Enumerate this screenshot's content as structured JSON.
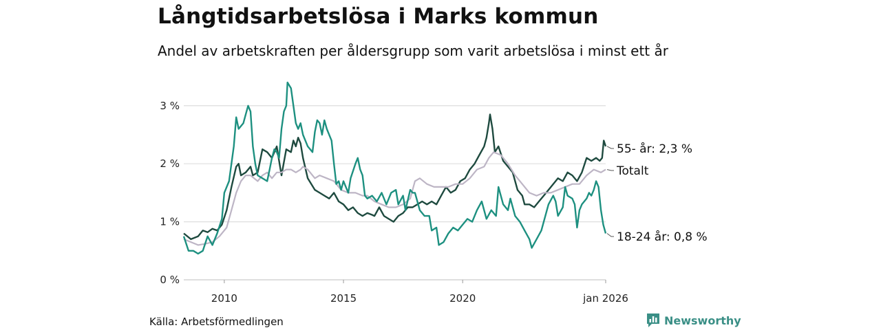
{
  "title": "Långtidsarbetslösa i Marks kommun",
  "subtitle": "Andel av arbetskraften per åldersgrupp som varit arbetslösa i minst ett år",
  "source": "Källa: Arbetsförmedlingen",
  "brand": "Newsworthy",
  "colors": {
    "older": "#1e4a3f",
    "young": "#1d9080",
    "total": "#bdb5c5",
    "grid": "#dddddd",
    "brand": "#3a8f86"
  },
  "chart_data": {
    "type": "line",
    "title": "Långtidsarbetslösa i Marks kommun",
    "xlabel": "",
    "ylabel": "",
    "xlim": [
      2008.3,
      2026.0
    ],
    "ylim": [
      0,
      3.4
    ],
    "y_ticks": [
      0,
      1,
      2,
      3
    ],
    "y_tick_labels": [
      "0 %",
      "1 %",
      "2 %",
      "3 %"
    ],
    "x_ticks": [
      2010,
      2015,
      2020,
      2026.0
    ],
    "x_tick_labels": [
      "2010",
      "2015",
      "2020",
      "jan 2026"
    ],
    "series": [
      {
        "name": "55- år",
        "end_label": "55- år: 2,3 %",
        "color": "#1e4a3f",
        "points": [
          [
            2008.3,
            0.8
          ],
          [
            2008.6,
            0.7
          ],
          [
            2008.9,
            0.75
          ],
          [
            2009.1,
            0.85
          ],
          [
            2009.3,
            0.82
          ],
          [
            2009.5,
            0.88
          ],
          [
            2009.7,
            0.85
          ],
          [
            2009.9,
            0.95
          ],
          [
            2010.1,
            1.2
          ],
          [
            2010.3,
            1.6
          ],
          [
            2010.5,
            1.95
          ],
          [
            2010.6,
            2.0
          ],
          [
            2010.7,
            1.8
          ],
          [
            2010.9,
            1.85
          ],
          [
            2011.1,
            1.95
          ],
          [
            2011.2,
            1.8
          ],
          [
            2011.4,
            1.85
          ],
          [
            2011.6,
            2.25
          ],
          [
            2011.8,
            2.2
          ],
          [
            2012.0,
            2.1
          ],
          [
            2012.2,
            2.3
          ],
          [
            2012.3,
            2.05
          ],
          [
            2012.4,
            1.8
          ],
          [
            2012.6,
            2.25
          ],
          [
            2012.8,
            2.2
          ],
          [
            2012.9,
            2.4
          ],
          [
            2013.0,
            2.3
          ],
          [
            2013.1,
            2.45
          ],
          [
            2013.2,
            2.35
          ],
          [
            2013.3,
            2.1
          ],
          [
            2013.5,
            1.75
          ],
          [
            2013.8,
            1.55
          ],
          [
            2014.0,
            1.5
          ],
          [
            2014.2,
            1.45
          ],
          [
            2014.4,
            1.4
          ],
          [
            2014.6,
            1.5
          ],
          [
            2014.8,
            1.35
          ],
          [
            2015.0,
            1.3
          ],
          [
            2015.2,
            1.2
          ],
          [
            2015.4,
            1.25
          ],
          [
            2015.6,
            1.15
          ],
          [
            2015.8,
            1.1
          ],
          [
            2016.0,
            1.15
          ],
          [
            2016.2,
            1.12
          ],
          [
            2016.3,
            1.1
          ],
          [
            2016.5,
            1.25
          ],
          [
            2016.7,
            1.1
          ],
          [
            2016.9,
            1.05
          ],
          [
            2017.1,
            1.0
          ],
          [
            2017.3,
            1.1
          ],
          [
            2017.5,
            1.15
          ],
          [
            2017.7,
            1.25
          ],
          [
            2017.9,
            1.25
          ],
          [
            2018.1,
            1.3
          ],
          [
            2018.3,
            1.35
          ],
          [
            2018.5,
            1.3
          ],
          [
            2018.7,
            1.35
          ],
          [
            2018.9,
            1.3
          ],
          [
            2019.1,
            1.45
          ],
          [
            2019.3,
            1.6
          ],
          [
            2019.5,
            1.5
          ],
          [
            2019.7,
            1.55
          ],
          [
            2019.9,
            1.7
          ],
          [
            2020.1,
            1.75
          ],
          [
            2020.3,
            1.9
          ],
          [
            2020.5,
            2.0
          ],
          [
            2020.7,
            2.15
          ],
          [
            2020.9,
            2.3
          ],
          [
            2021.0,
            2.45
          ],
          [
            2021.1,
            2.7
          ],
          [
            2021.15,
            2.85
          ],
          [
            2021.25,
            2.6
          ],
          [
            2021.35,
            2.2
          ],
          [
            2021.5,
            2.3
          ],
          [
            2021.7,
            2.05
          ],
          [
            2021.9,
            1.95
          ],
          [
            2022.1,
            1.85
          ],
          [
            2022.3,
            1.55
          ],
          [
            2022.5,
            1.45
          ],
          [
            2022.6,
            1.3
          ],
          [
            2022.8,
            1.3
          ],
          [
            2023.0,
            1.25
          ],
          [
            2023.2,
            1.35
          ],
          [
            2023.4,
            1.45
          ],
          [
            2023.6,
            1.55
          ],
          [
            2023.8,
            1.65
          ],
          [
            2024.0,
            1.75
          ],
          [
            2024.2,
            1.7
          ],
          [
            2024.4,
            1.85
          ],
          [
            2024.6,
            1.8
          ],
          [
            2024.8,
            1.7
          ],
          [
            2025.0,
            1.85
          ],
          [
            2025.2,
            2.1
          ],
          [
            2025.4,
            2.05
          ],
          [
            2025.6,
            2.1
          ],
          [
            2025.75,
            2.05
          ],
          [
            2025.85,
            2.1
          ],
          [
            2025.92,
            2.4
          ],
          [
            2026.0,
            2.3
          ]
        ]
      },
      {
        "name": "Totalt",
        "end_label": "Totalt",
        "color": "#bdb5c5",
        "points": [
          [
            2008.3,
            0.7
          ],
          [
            2008.6,
            0.65
          ],
          [
            2008.9,
            0.6
          ],
          [
            2009.2,
            0.62
          ],
          [
            2009.5,
            0.65
          ],
          [
            2009.8,
            0.75
          ],
          [
            2010.1,
            0.9
          ],
          [
            2010.3,
            1.2
          ],
          [
            2010.5,
            1.5
          ],
          [
            2010.7,
            1.7
          ],
          [
            2010.9,
            1.8
          ],
          [
            2011.1,
            1.8
          ],
          [
            2011.4,
            1.7
          ],
          [
            2011.6,
            1.8
          ],
          [
            2011.8,
            1.85
          ],
          [
            2012.0,
            1.75
          ],
          [
            2012.2,
            1.85
          ],
          [
            2012.4,
            1.85
          ],
          [
            2012.6,
            1.9
          ],
          [
            2012.8,
            1.9
          ],
          [
            2013.0,
            1.85
          ],
          [
            2013.2,
            1.9
          ],
          [
            2013.3,
            1.95
          ],
          [
            2013.5,
            1.9
          ],
          [
            2013.8,
            1.75
          ],
          [
            2014.0,
            1.8
          ],
          [
            2014.3,
            1.75
          ],
          [
            2014.6,
            1.7
          ],
          [
            2014.9,
            1.55
          ],
          [
            2015.2,
            1.5
          ],
          [
            2015.5,
            1.5
          ],
          [
            2015.8,
            1.45
          ],
          [
            2016.0,
            1.45
          ],
          [
            2016.3,
            1.35
          ],
          [
            2016.6,
            1.3
          ],
          [
            2016.9,
            1.25
          ],
          [
            2017.2,
            1.25
          ],
          [
            2017.5,
            1.3
          ],
          [
            2017.8,
            1.4
          ],
          [
            2018.0,
            1.7
          ],
          [
            2018.2,
            1.75
          ],
          [
            2018.5,
            1.65
          ],
          [
            2018.8,
            1.6
          ],
          [
            2019.1,
            1.6
          ],
          [
            2019.4,
            1.6
          ],
          [
            2019.7,
            1.65
          ],
          [
            2020.0,
            1.65
          ],
          [
            2020.3,
            1.75
          ],
          [
            2020.6,
            1.9
          ],
          [
            2020.9,
            1.95
          ],
          [
            2021.1,
            2.1
          ],
          [
            2021.3,
            2.2
          ],
          [
            2021.6,
            2.15
          ],
          [
            2021.9,
            2.0
          ],
          [
            2022.2,
            1.8
          ],
          [
            2022.5,
            1.65
          ],
          [
            2022.8,
            1.5
          ],
          [
            2023.1,
            1.45
          ],
          [
            2023.4,
            1.5
          ],
          [
            2023.7,
            1.5
          ],
          [
            2024.0,
            1.55
          ],
          [
            2024.3,
            1.6
          ],
          [
            2024.6,
            1.65
          ],
          [
            2024.9,
            1.65
          ],
          [
            2025.2,
            1.8
          ],
          [
            2025.5,
            1.9
          ],
          [
            2025.8,
            1.85
          ],
          [
            2026.0,
            1.9
          ]
        ]
      },
      {
        "name": "18-24 år",
        "end_label": "18-24 år: 0,8 %",
        "color": "#1d9080",
        "points": [
          [
            2008.3,
            0.75
          ],
          [
            2008.5,
            0.5
          ],
          [
            2008.7,
            0.5
          ],
          [
            2008.9,
            0.45
          ],
          [
            2009.1,
            0.5
          ],
          [
            2009.3,
            0.75
          ],
          [
            2009.5,
            0.6
          ],
          [
            2009.7,
            0.8
          ],
          [
            2009.9,
            1.05
          ],
          [
            2010.0,
            1.5
          ],
          [
            2010.2,
            1.7
          ],
          [
            2010.4,
            2.3
          ],
          [
            2010.5,
            2.8
          ],
          [
            2010.6,
            2.6
          ],
          [
            2010.8,
            2.7
          ],
          [
            2010.9,
            2.85
          ],
          [
            2011.0,
            3.0
          ],
          [
            2011.1,
            2.9
          ],
          [
            2011.2,
            2.3
          ],
          [
            2011.3,
            2.0
          ],
          [
            2011.4,
            1.8
          ],
          [
            2011.6,
            1.75
          ],
          [
            2011.8,
            1.7
          ],
          [
            2011.9,
            1.9
          ],
          [
            2012.0,
            2.1
          ],
          [
            2012.1,
            2.25
          ],
          [
            2012.2,
            2.2
          ],
          [
            2012.3,
            2.1
          ],
          [
            2012.4,
            2.6
          ],
          [
            2012.5,
            2.9
          ],
          [
            2012.6,
            3.0
          ],
          [
            2012.65,
            3.4
          ],
          [
            2012.8,
            3.3
          ],
          [
            2012.9,
            3.0
          ],
          [
            2013.0,
            2.7
          ],
          [
            2013.1,
            2.6
          ],
          [
            2013.2,
            2.7
          ],
          [
            2013.3,
            2.5
          ],
          [
            2013.5,
            2.3
          ],
          [
            2013.7,
            2.2
          ],
          [
            2013.8,
            2.55
          ],
          [
            2013.9,
            2.75
          ],
          [
            2014.0,
            2.7
          ],
          [
            2014.1,
            2.5
          ],
          [
            2014.2,
            2.75
          ],
          [
            2014.3,
            2.6
          ],
          [
            2014.5,
            2.4
          ],
          [
            2014.6,
            2.0
          ],
          [
            2014.7,
            1.65
          ],
          [
            2014.8,
            1.7
          ],
          [
            2014.9,
            1.55
          ],
          [
            2015.0,
            1.7
          ],
          [
            2015.2,
            1.5
          ],
          [
            2015.3,
            1.75
          ],
          [
            2015.5,
            2.0
          ],
          [
            2015.6,
            2.1
          ],
          [
            2015.7,
            1.9
          ],
          [
            2015.8,
            1.8
          ],
          [
            2015.9,
            1.45
          ],
          [
            2016.0,
            1.4
          ],
          [
            2016.2,
            1.45
          ],
          [
            2016.4,
            1.35
          ],
          [
            2016.6,
            1.5
          ],
          [
            2016.8,
            1.3
          ],
          [
            2017.0,
            1.5
          ],
          [
            2017.2,
            1.55
          ],
          [
            2017.3,
            1.3
          ],
          [
            2017.5,
            1.45
          ],
          [
            2017.6,
            1.2
          ],
          [
            2017.8,
            1.55
          ],
          [
            2017.9,
            1.5
          ],
          [
            2018.0,
            1.5
          ],
          [
            2018.1,
            1.35
          ],
          [
            2018.2,
            1.2
          ],
          [
            2018.4,
            1.1
          ],
          [
            2018.6,
            1.1
          ],
          [
            2018.7,
            0.85
          ],
          [
            2018.9,
            0.9
          ],
          [
            2019.0,
            0.6
          ],
          [
            2019.2,
            0.65
          ],
          [
            2019.4,
            0.8
          ],
          [
            2019.6,
            0.9
          ],
          [
            2019.8,
            0.85
          ],
          [
            2020.0,
            0.95
          ],
          [
            2020.2,
            1.05
          ],
          [
            2020.4,
            1.0
          ],
          [
            2020.6,
            1.2
          ],
          [
            2020.8,
            1.35
          ],
          [
            2021.0,
            1.05
          ],
          [
            2021.2,
            1.2
          ],
          [
            2021.4,
            1.1
          ],
          [
            2021.5,
            1.6
          ],
          [
            2021.7,
            1.3
          ],
          [
            2021.9,
            1.2
          ],
          [
            2022.0,
            1.4
          ],
          [
            2022.2,
            1.1
          ],
          [
            2022.4,
            1.0
          ],
          [
            2022.6,
            0.85
          ],
          [
            2022.8,
            0.7
          ],
          [
            2022.9,
            0.55
          ],
          [
            2023.1,
            0.7
          ],
          [
            2023.3,
            0.85
          ],
          [
            2023.4,
            1.0
          ],
          [
            2023.6,
            1.3
          ],
          [
            2023.8,
            1.45
          ],
          [
            2023.9,
            1.35
          ],
          [
            2024.0,
            1.1
          ],
          [
            2024.2,
            1.25
          ],
          [
            2024.3,
            1.6
          ],
          [
            2024.4,
            1.45
          ],
          [
            2024.6,
            1.4
          ],
          [
            2024.7,
            1.3
          ],
          [
            2024.8,
            0.9
          ],
          [
            2024.9,
            1.2
          ],
          [
            2025.0,
            1.3
          ],
          [
            2025.2,
            1.4
          ],
          [
            2025.3,
            1.5
          ],
          [
            2025.4,
            1.45
          ],
          [
            2025.5,
            1.55
          ],
          [
            2025.6,
            1.7
          ],
          [
            2025.7,
            1.6
          ],
          [
            2025.8,
            1.2
          ],
          [
            2025.9,
            0.95
          ],
          [
            2026.0,
            0.8
          ]
        ]
      }
    ]
  }
}
